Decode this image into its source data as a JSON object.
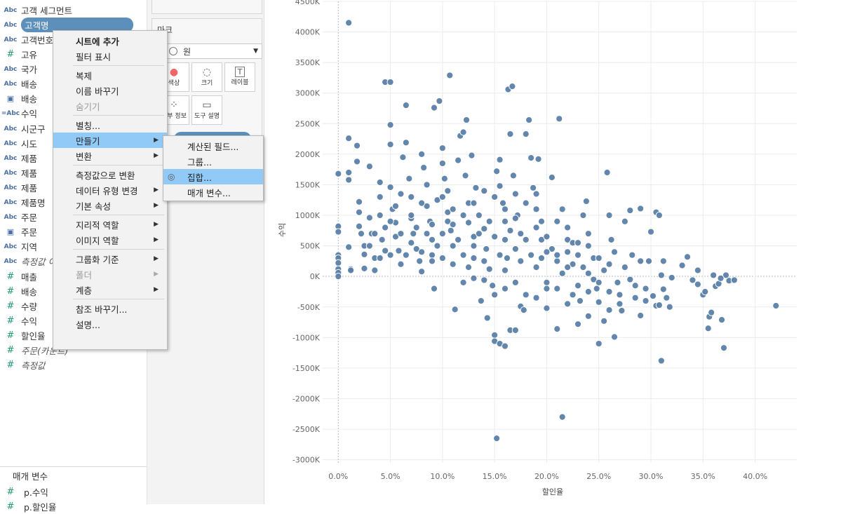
{
  "data_pane": {
    "fields": [
      {
        "icon": "Abc",
        "name": "고객 세그먼트",
        "top": 4
      },
      {
        "icon": "Abc",
        "name": "고객명",
        "top": 25,
        "selected": true
      },
      {
        "icon": "Abc",
        "name": "고객번호",
        "top": 46
      },
      {
        "icon": "#",
        "name": "고유",
        "top": 67
      },
      {
        "icon": "Abc",
        "name": "국가",
        "top": 88
      },
      {
        "icon": "Abc",
        "name": "배송",
        "top": 109
      },
      {
        "icon": "cal",
        "name": "배송",
        "top": 130
      },
      {
        "icon": "=Abc",
        "name": "수익",
        "top": 151
      },
      {
        "icon": "Abc",
        "name": "시군구",
        "top": 173
      },
      {
        "icon": "Abc",
        "name": "시도",
        "top": 194
      },
      {
        "icon": "Abc",
        "name": "제품",
        "top": 215
      },
      {
        "icon": "Abc",
        "name": "제품",
        "top": 236
      },
      {
        "icon": "Abc",
        "name": "제품",
        "top": 257
      },
      {
        "icon": "Abc",
        "name": "제품명",
        "top": 278
      },
      {
        "icon": "Abc",
        "name": "주문",
        "top": 299
      },
      {
        "icon": "cal",
        "name": "주문",
        "top": 320
      },
      {
        "icon": "Abc",
        "name": "지역",
        "top": 341
      },
      {
        "icon": "Abc",
        "name": "측정값 이름",
        "top": 362,
        "italic": true
      },
      {
        "icon": "#",
        "name": "매출",
        "top": 384
      },
      {
        "icon": "#",
        "name": "배송",
        "top": 405
      },
      {
        "icon": "#",
        "name": "수량",
        "top": 426
      },
      {
        "icon": "#",
        "name": "수익",
        "top": 447
      },
      {
        "icon": "#",
        "name": "할인율",
        "top": 468
      },
      {
        "icon": "#",
        "name": "주문(카운트)",
        "top": 489,
        "italic": true
      },
      {
        "icon": "#",
        "name": "측정값",
        "top": 510,
        "italic": true
      }
    ],
    "params_header": "매개 변수",
    "params": [
      {
        "icon": "#",
        "name": "p.수익"
      },
      {
        "icon": "#",
        "name": "p.할인율"
      }
    ]
  },
  "marks_card": {
    "title": "마크",
    "mark_type": "원",
    "buttons": [
      {
        "label": "색상",
        "icon": "palette-icon"
      },
      {
        "label": "크기",
        "icon": "size-icon"
      },
      {
        "label": "레이블",
        "icon": "label-icon"
      },
      {
        "label": "세부 정보",
        "icon": "detail-icon"
      },
      {
        "label": "도구 설명",
        "icon": "tooltip-icon"
      }
    ]
  },
  "context_menu": {
    "items": [
      {
        "label": "시트에 추가",
        "bold": true
      },
      {
        "label": "필터 표시"
      },
      {
        "sep": true
      },
      {
        "label": "복제"
      },
      {
        "label": "이름 바꾸기"
      },
      {
        "label": "숨기기",
        "disabled": true
      },
      {
        "sep": true
      },
      {
        "label": "별칭..."
      },
      {
        "label": "만들기",
        "submenu": true,
        "highlight": true
      },
      {
        "label": "변환",
        "submenu": true
      },
      {
        "sep": true
      },
      {
        "label": "측정값으로 변환"
      },
      {
        "label": "데이터 유형 변경",
        "submenu": true
      },
      {
        "label": "기본 속성",
        "submenu": true
      },
      {
        "sep": true
      },
      {
        "label": "지리적 역할",
        "submenu": true
      },
      {
        "label": "이미지 역할",
        "submenu": true
      },
      {
        "sep": true
      },
      {
        "label": "그룹화 기준",
        "submenu": true
      },
      {
        "label": "폴더",
        "submenu": true,
        "disabled": true
      },
      {
        "label": "계층",
        "submenu": true
      },
      {
        "sep": true
      },
      {
        "label": "참조 바꾸기..."
      },
      {
        "label": "설명..."
      }
    ]
  },
  "submenu": {
    "items": [
      {
        "label": "계산된 필드..."
      },
      {
        "label": "그룹..."
      },
      {
        "label": "집합...",
        "highlight": true,
        "icon": "set-icon"
      },
      {
        "label": "매개 변수..."
      }
    ]
  },
  "chart_data": {
    "type": "scatter",
    "xlabel": "할인율",
    "ylabel": "수익",
    "x_ticks": [
      "0.0%",
      "5.0%",
      "10.0%",
      "15.0%",
      "20.0%",
      "25.0%",
      "30.0%",
      "35.0%",
      "40.0%"
    ],
    "y_ticks": [
      "4500K",
      "4000K",
      "3500K",
      "3000K",
      "2500K",
      "2000K",
      "1500K",
      "1000K",
      "500K",
      "0K",
      "-500K",
      "-1000K",
      "-1500K",
      "-2000K",
      "-2500K",
      "-3000K"
    ],
    "xlim": [
      -0.015,
      0.44
    ],
    "ylim": [
      -3050,
      4500
    ],
    "marker_color": "#5b7fa8",
    "points": [
      [
        0.0,
        1680
      ],
      [
        0.0,
        820
      ],
      [
        0.0,
        730
      ],
      [
        0.0,
        350
      ],
      [
        0.0,
        300
      ],
      [
        0.0,
        220
      ],
      [
        0.0,
        120
      ],
      [
        0.0,
        60
      ],
      [
        0.0,
        0
      ],
      [
        0.01,
        4150
      ],
      [
        0.01,
        2260
      ],
      [
        0.01,
        1700
      ],
      [
        0.01,
        1580
      ],
      [
        0.01,
        480
      ],
      [
        0.012,
        120
      ],
      [
        0.012,
        100
      ],
      [
        0.018,
        2140
      ],
      [
        0.018,
        1880
      ],
      [
        0.02,
        1220
      ],
      [
        0.02,
        1050
      ],
      [
        0.02,
        820
      ],
      [
        0.022,
        700
      ],
      [
        0.025,
        500
      ],
      [
        0.025,
        360
      ],
      [
        0.025,
        130
      ],
      [
        0.03,
        1800
      ],
      [
        0.03,
        960
      ],
      [
        0.032,
        700
      ],
      [
        0.035,
        300
      ],
      [
        0.035,
        100
      ],
      [
        0.04,
        1540
      ],
      [
        0.04,
        1300
      ],
      [
        0.04,
        1000
      ],
      [
        0.042,
        600
      ],
      [
        0.045,
        420
      ],
      [
        0.045,
        3180
      ],
      [
        0.05,
        3180
      ],
      [
        0.05,
        2480
      ],
      [
        0.05,
        2160
      ],
      [
        0.05,
        1460
      ],
      [
        0.052,
        1100
      ],
      [
        0.055,
        880
      ],
      [
        0.055,
        650
      ],
      [
        0.058,
        420
      ],
      [
        0.06,
        200
      ],
      [
        0.062,
        1950
      ],
      [
        0.065,
        2800
      ],
      [
        0.065,
        2190
      ],
      [
        0.068,
        1600
      ],
      [
        0.07,
        1300
      ],
      [
        0.07,
        950
      ],
      [
        0.072,
        700
      ],
      [
        0.075,
        450
      ],
      [
        0.078,
        250
      ],
      [
        0.08,
        80
      ],
      [
        0.08,
        2000
      ],
      [
        0.082,
        1780
      ],
      [
        0.085,
        1500
      ],
      [
        0.085,
        1150
      ],
      [
        0.088,
        900
      ],
      [
        0.09,
        600
      ],
      [
        0.09,
        350
      ],
      [
        0.092,
        -200
      ],
      [
        0.095,
        1250
      ],
      [
        0.092,
        2760
      ],
      [
        0.097,
        2870
      ],
      [
        0.1,
        2100
      ],
      [
        0.1,
        1850
      ],
      [
        0.102,
        1600
      ],
      [
        0.105,
        1400
      ],
      [
        0.105,
        1050
      ],
      [
        0.108,
        750
      ],
      [
        0.11,
        500
      ],
      [
        0.11,
        200
      ],
      [
        0.107,
        3290
      ],
      [
        0.112,
        -540
      ],
      [
        0.115,
        1900
      ],
      [
        0.117,
        2300
      ],
      [
        0.12,
        2360
      ],
      [
        0.122,
        1650
      ],
      [
        0.125,
        1200
      ],
      [
        0.125,
        880
      ],
      [
        0.13,
        650
      ],
      [
        0.13,
        300
      ],
      [
        0.123,
        2560
      ],
      [
        0.128,
        1980
      ],
      [
        0.132,
        1450
      ],
      [
        0.135,
        1000
      ],
      [
        0.137,
        -400
      ],
      [
        0.14,
        780
      ],
      [
        0.142,
        450
      ],
      [
        0.145,
        120
      ],
      [
        0.148,
        -150
      ],
      [
        0.143,
        -680
      ],
      [
        0.15,
        -960
      ],
      [
        0.15,
        -1060
      ],
      [
        0.152,
        1720
      ],
      [
        0.155,
        1910
      ],
      [
        0.155,
        1480
      ],
      [
        0.158,
        1200
      ],
      [
        0.16,
        900
      ],
      [
        0.16,
        600
      ],
      [
        0.162,
        300
      ],
      [
        0.152,
        -2650
      ],
      [
        0.155,
        -1100
      ],
      [
        0.16,
        -1140
      ],
      [
        0.163,
        3060
      ],
      [
        0.167,
        3110
      ],
      [
        0.165,
        2330
      ],
      [
        0.168,
        1650
      ],
      [
        0.17,
        1350
      ],
      [
        0.172,
        1000
      ],
      [
        0.175,
        700
      ],
      [
        0.165,
        -880
      ],
      [
        0.17,
        -880
      ],
      [
        0.175,
        -490
      ],
      [
        0.178,
        -550
      ],
      [
        0.18,
        2330
      ],
      [
        0.183,
        2560
      ],
      [
        0.185,
        1940
      ],
      [
        0.187,
        1450
      ],
      [
        0.19,
        1100
      ],
      [
        0.19,
        800
      ],
      [
        0.192,
        1920
      ],
      [
        0.195,
        600
      ],
      [
        0.195,
        300
      ],
      [
        0.2,
        -100
      ],
      [
        0.2,
        -200
      ],
      [
        0.205,
        1620
      ],
      [
        0.21,
        -860
      ],
      [
        0.212,
        2580
      ],
      [
        0.215,
        1100
      ],
      [
        0.215,
        -2300
      ],
      [
        0.21,
        900
      ],
      [
        0.22,
        600
      ],
      [
        0.22,
        400
      ],
      [
        0.225,
        200
      ],
      [
        0.225,
        -300
      ],
      [
        0.23,
        -780
      ],
      [
        0.232,
        -400
      ],
      [
        0.235,
        1000
      ],
      [
        0.238,
        1230
      ],
      [
        0.24,
        -650
      ],
      [
        0.24,
        500
      ],
      [
        0.245,
        300
      ],
      [
        0.248,
        -200
      ],
      [
        0.25,
        -420
      ],
      [
        0.25,
        -1100
      ],
      [
        0.255,
        -730
      ],
      [
        0.258,
        1700
      ],
      [
        0.26,
        1000
      ],
      [
        0.262,
        600
      ],
      [
        0.265,
        -990
      ],
      [
        0.26,
        200
      ],
      [
        0.268,
        -100
      ],
      [
        0.27,
        -300
      ],
      [
        0.272,
        -560
      ],
      [
        0.275,
        900
      ],
      [
        0.28,
        1080
      ],
      [
        0.282,
        350
      ],
      [
        0.285,
        -150
      ],
      [
        0.29,
        -640
      ],
      [
        0.29,
        1110
      ],
      [
        0.295,
        -400
      ],
      [
        0.298,
        250
      ],
      [
        0.3,
        730
      ],
      [
        0.302,
        -320
      ],
      [
        0.305,
        -480
      ],
      [
        0.305,
        1050
      ],
      [
        0.308,
        1000
      ],
      [
        0.31,
        20
      ],
      [
        0.312,
        -210
      ],
      [
        0.315,
        -350
      ],
      [
        0.308,
        -470
      ],
      [
        0.31,
        -1380
      ],
      [
        0.312,
        250
      ],
      [
        0.318,
        -500
      ],
      [
        0.32,
        -20
      ],
      [
        0.33,
        180
      ],
      [
        0.335,
        320
      ],
      [
        0.34,
        -60
      ],
      [
        0.345,
        100
      ],
      [
        0.35,
        -300
      ],
      [
        0.355,
        -850
      ],
      [
        0.356,
        -660
      ],
      [
        0.358,
        -590
      ],
      [
        0.362,
        -160
      ],
      [
        0.365,
        -120
      ],
      [
        0.368,
        -710
      ],
      [
        0.37,
        -1170
      ],
      [
        0.372,
        20
      ],
      [
        0.375,
        -70
      ],
      [
        0.38,
        -60
      ],
      [
        0.42,
        -480
      ],
      [
        0.345,
        -130
      ],
      [
        0.352,
        -250
      ],
      [
        0.36,
        20
      ],
      [
        0.367,
        -30
      ],
      [
        0.03,
        500
      ],
      [
        0.035,
        700
      ],
      [
        0.04,
        300
      ],
      [
        0.045,
        800
      ],
      [
        0.05,
        350
      ],
      [
        0.055,
        1150
      ],
      [
        0.06,
        700
      ],
      [
        0.065,
        350
      ],
      [
        0.07,
        550
      ],
      [
        0.075,
        800
      ],
      [
        0.08,
        400
      ],
      [
        0.085,
        700
      ],
      [
        0.09,
        250
      ],
      [
        0.095,
        500
      ],
      [
        0.1,
        1300
      ],
      [
        0.1,
        300
      ],
      [
        0.105,
        900
      ],
      [
        0.11,
        1100
      ],
      [
        0.115,
        600
      ],
      [
        0.12,
        350
      ],
      [
        0.125,
        150
      ],
      [
        0.13,
        500
      ],
      [
        0.135,
        700
      ],
      [
        0.14,
        250
      ],
      [
        0.145,
        900
      ],
      [
        0.15,
        650
      ],
      [
        0.155,
        350
      ],
      [
        0.16,
        100
      ],
      [
        0.165,
        750
      ],
      [
        0.17,
        450
      ],
      [
        0.175,
        250
      ],
      [
        0.18,
        600
      ],
      [
        0.185,
        350
      ],
      [
        0.19,
        150
      ],
      [
        0.195,
        900
      ],
      [
        0.2,
        650
      ],
      [
        0.205,
        450
      ],
      [
        0.21,
        250
      ],
      [
        0.215,
        50
      ],
      [
        0.22,
        800
      ],
      [
        0.225,
        550
      ],
      [
        0.23,
        350
      ],
      [
        0.235,
        150
      ],
      [
        0.24,
        700
      ],
      [
        0.245,
        -50
      ],
      [
        0.25,
        300
      ],
      [
        0.255,
        100
      ],
      [
        0.26,
        -250
      ],
      [
        0.265,
        400
      ],
      [
        0.27,
        -450
      ],
      [
        0.275,
        150
      ],
      [
        0.28,
        -50
      ],
      [
        0.285,
        -350
      ],
      [
        0.29,
        250
      ],
      [
        0.295,
        -200
      ],
      [
        0.05,
        900
      ],
      [
        0.06,
        1350
      ],
      [
        0.07,
        1000
      ],
      [
        0.08,
        1200
      ],
      [
        0.09,
        850
      ],
      [
        0.1,
        700
      ],
      [
        0.11,
        850
      ],
      [
        0.12,
        1000
      ],
      [
        0.13,
        1200
      ],
      [
        0.14,
        1400
      ],
      [
        0.15,
        1300
      ],
      [
        0.16,
        1100
      ],
      [
        0.17,
        950
      ],
      [
        0.18,
        1200
      ],
      [
        0.19,
        1350
      ],
      [
        0.2,
        400
      ],
      [
        0.21,
        350
      ],
      [
        0.22,
        150
      ],
      [
        0.23,
        550
      ],
      [
        0.24,
        50
      ],
      [
        0.12,
        -100
      ],
      [
        0.13,
        -30
      ],
      [
        0.14,
        -60
      ],
      [
        0.15,
        -300
      ],
      [
        0.16,
        -200
      ],
      [
        0.17,
        -100
      ],
      [
        0.18,
        -300
      ],
      [
        0.19,
        -350
      ],
      [
        0.2,
        -520
      ],
      [
        0.21,
        -200
      ],
      [
        0.22,
        -450
      ],
      [
        0.23,
        -150
      ],
      [
        0.24,
        -250
      ],
      [
        0.25,
        -100
      ],
      [
        0.26,
        -550
      ]
    ]
  }
}
